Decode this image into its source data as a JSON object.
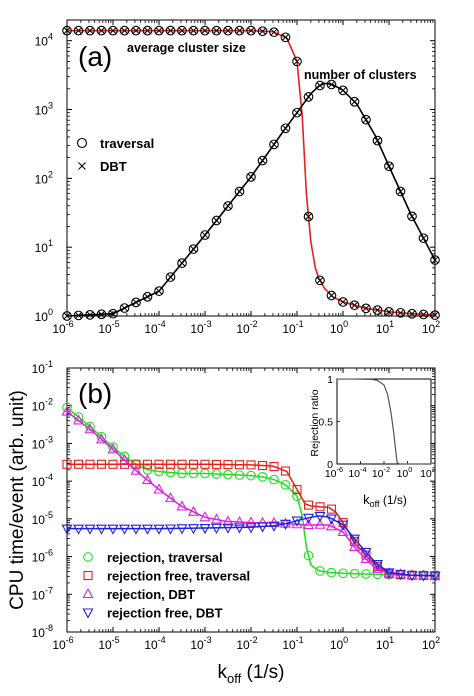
{
  "chart_data": [
    {
      "panel_label": "(a)",
      "type": "line",
      "xscale": "log",
      "yscale": "log",
      "xlim": [
        1e-06,
        100
      ],
      "ylim": [
        1,
        20000
      ],
      "x_ticks": [
        "10",
        "10",
        "10",
        "10",
        "10",
        "10",
        "10",
        "10",
        "10"
      ],
      "x_tick_exponents": [
        "-6",
        "-5",
        "-4",
        "-3",
        "-2",
        "-1",
        "0",
        "1",
        "2"
      ],
      "y_ticks": [
        "10",
        "10",
        "10",
        "10",
        "10"
      ],
      "y_tick_exponents": [
        "0",
        "1",
        "2",
        "3",
        "4"
      ],
      "annotations": [
        "average cluster size",
        "number of clusters"
      ],
      "legend": {
        "placement": "middle-left",
        "entries": [
          {
            "marker": "circle",
            "label": "traversal"
          },
          {
            "marker": "cross",
            "label": "DBT"
          }
        ]
      },
      "series": [
        {
          "annotation": "average cluster size",
          "color": "#e8201c",
          "x": [
            1e-06,
            1e-05,
            0.0001,
            0.001,
            0.01,
            0.03,
            0.06,
            0.1,
            0.13,
            0.16,
            0.2,
            0.25,
            0.3,
            0.4,
            0.6,
            1,
            3,
            10,
            30,
            100
          ],
          "y": [
            14000,
            14000,
            14000,
            14000,
            14000,
            13500,
            11000,
            5000,
            800,
            60,
            12,
            5,
            3.5,
            2.5,
            1.9,
            1.6,
            1.3,
            1.15,
            1.08,
            1.03
          ]
        },
        {
          "annotation": "number of clusters",
          "color": "#000000",
          "x": [
            1e-06,
            1e-05,
            0.0001,
            0.001,
            0.01,
            0.05,
            0.1,
            0.2,
            0.3,
            0.4,
            0.6,
            1,
            2,
            5,
            10,
            30,
            100
          ],
          "y": [
            1,
            1.08,
            2.3,
            15,
            105,
            480,
            900,
            1700,
            2200,
            2400,
            2300,
            1900,
            1200,
            420,
            150,
            30,
            6.5
          ]
        }
      ],
      "marker_x": [
        1e-06,
        1.78e-06,
        3.16e-06,
        5.62e-06,
        1e-05,
        1.78e-05,
        3.16e-05,
        5.62e-05,
        0.0001,
        0.000178,
        0.000316,
        0.000562,
        0.001,
        0.00178,
        0.00316,
        0.00562,
        0.01,
        0.0178,
        0.0316,
        0.0562,
        0.1,
        0.178,
        0.316,
        0.562,
        1,
        1.78,
        3.16,
        5.62,
        10,
        17.8,
        31.6,
        56.2,
        100
      ]
    },
    {
      "panel_label": "(b)",
      "type": "line",
      "xscale": "log",
      "yscale": "log",
      "xlabel_main": "k",
      "xlabel_sub": "off",
      "xlabel_unit": " (1/s)",
      "ylabel": "CPU time/event (arb. unit)",
      "xlim": [
        1e-06,
        100
      ],
      "ylim": [
        1e-08,
        0.1
      ],
      "x_ticks": [
        "10",
        "10",
        "10",
        "10",
        "10",
        "10",
        "10",
        "10",
        "10"
      ],
      "x_tick_exponents": [
        "-6",
        "-5",
        "-4",
        "-3",
        "-2",
        "-1",
        "0",
        "1",
        "2"
      ],
      "y_ticks": [
        "10",
        "10",
        "10",
        "10",
        "10",
        "10",
        "10",
        "10"
      ],
      "y_tick_exponents": [
        "-8",
        "-7",
        "-6",
        "-5",
        "-4",
        "-3",
        "-2",
        "-1"
      ],
      "legend": {
        "placement": "bottom-left",
        "entries": [
          {
            "marker": "circle",
            "color": "#1ee01e",
            "label": "rejection, traversal"
          },
          {
            "marker": "square",
            "color": "#e8201c",
            "label": "rejection free, traversal"
          },
          {
            "marker": "triangle-up",
            "color": "#e020e0",
            "label": "rejection, DBT"
          },
          {
            "marker": "triangle-down",
            "color": "#2020e0",
            "label": "rejection free, DBT"
          }
        ]
      },
      "series": [
        {
          "name": "rejection, traversal",
          "color": "#1ee01e",
          "marker": "circle",
          "x": [
            1e-06,
            1.78e-06,
            3.16e-06,
            5.62e-06,
            1e-05,
            1.78e-05,
            3.16e-05,
            5.62e-05,
            0.0001,
            0.000178,
            0.000316,
            0.000562,
            0.001,
            0.00178,
            0.00316,
            0.00562,
            0.01,
            0.0178,
            0.0316,
            0.0562,
            0.1,
            0.13,
            0.16,
            0.2,
            0.3,
            0.5,
            1,
            2,
            5,
            10,
            30,
            100
          ],
          "y": [
            0.009,
            0.005,
            0.0028,
            0.0015,
            0.0008,
            0.00045,
            0.00028,
            0.0002,
            0.00018,
            0.00017,
            0.00016,
            0.00016,
            0.00016,
            0.000155,
            0.00015,
            0.000145,
            0.00014,
            0.00013,
            0.00011,
            8e-05,
            4e-05,
            1.2e-05,
            1.8e-06,
            6e-07,
            4.2e-07,
            3.8e-07,
            3.6e-07,
            3.5e-07,
            3.4e-07,
            3.3e-07,
            3.2e-07,
            3.2e-07
          ]
        },
        {
          "name": "rejection free, traversal",
          "color": "#e8201c",
          "marker": "square",
          "x": [
            1e-06,
            1e-05,
            0.0001,
            0.001,
            0.01,
            0.03,
            0.06,
            0.1,
            0.15,
            0.2,
            0.3,
            0.5,
            0.7,
            1,
            2,
            5,
            10,
            30,
            100
          ],
          "y": [
            0.00028,
            0.00028,
            0.00028,
            0.00028,
            0.00027,
            0.00025,
            0.00018,
            6e-05,
            2.5e-05,
            2.2e-05,
            2.1e-05,
            2e-05,
            1.5e-05,
            8e-06,
            2e-06,
            6e-07,
            3.5e-07,
            3.2e-07,
            3.1e-07
          ]
        },
        {
          "name": "rejection, DBT",
          "color": "#e020e0",
          "marker": "triangle-up",
          "x": [
            1e-06,
            3e-06,
            1e-05,
            3e-05,
            0.0001,
            0.0003,
            0.001,
            0.003,
            0.01,
            0.03,
            0.1,
            0.2,
            0.3,
            0.5,
            1,
            2,
            5,
            10,
            30,
            100
          ],
          "y": [
            0.007,
            0.0025,
            0.0007,
            0.0002,
            6e-05,
            2.2e-05,
            1.1e-05,
            8.5e-06,
            8e-06,
            7.8e-06,
            7.2e-06,
            6.8e-06,
            7e-06,
            6.8e-06,
            4.5e-06,
            1.5e-06,
            5e-07,
            3.6e-07,
            3.2e-07,
            3.1e-07
          ]
        },
        {
          "name": "rejection free, DBT",
          "color": "#2020e0",
          "marker": "triangle-down",
          "x": [
            1e-06,
            1e-05,
            0.0001,
            0.001,
            0.01,
            0.03,
            0.06,
            0.1,
            0.2,
            0.3,
            0.5,
            1,
            2,
            5,
            10,
            30,
            100
          ],
          "y": [
            5.5e-06,
            5.5e-06,
            5.5e-06,
            5.7e-06,
            6e-06,
            6.5e-06,
            7.5e-06,
            9e-06,
            1.1e-05,
            1.2e-05,
            1.1e-05,
            7e-06,
            2.5e-06,
            7e-07,
            3.8e-07,
            3.2e-07,
            3.1e-07
          ]
        }
      ],
      "marker_x": [
        1e-06,
        1.78e-06,
        3.16e-06,
        5.62e-06,
        1e-05,
        1.78e-05,
        3.16e-05,
        5.62e-05,
        0.0001,
        0.000178,
        0.000316,
        0.000562,
        0.001,
        0.00178,
        0.00316,
        0.00562,
        0.01,
        0.0178,
        0.0316,
        0.0562,
        0.1,
        0.178,
        0.316,
        0.562,
        1,
        1.78,
        3.16,
        5.62,
        10,
        17.8,
        31.6,
        56.2,
        100
      ],
      "inset": {
        "type": "line",
        "ylabel": "Rejection ratio",
        "xlabel_main": "k",
        "xlabel_sub": "off",
        "xlabel_unit": " (1/s)",
        "xscale": "log",
        "xlim": [
          1e-06,
          100
        ],
        "ylim": [
          0,
          1
        ],
        "x_ticks": [
          "10",
          "10",
          "10",
          "10",
          "10"
        ],
        "x_tick_exponents": [
          "-6",
          "-4",
          "-2",
          "0",
          "2"
        ],
        "y_ticks": [
          "0",
          "0.5",
          "1"
        ],
        "color": "#555555",
        "x": [
          1e-06,
          1e-05,
          0.0001,
          0.001,
          0.003,
          0.01,
          0.02,
          0.04,
          0.07,
          0.1,
          0.13,
          0.2,
          100
        ],
        "y": [
          0.999,
          0.999,
          0.998,
          0.995,
          0.98,
          0.93,
          0.82,
          0.6,
          0.35,
          0.15,
          0.02,
          0,
          0
        ]
      }
    }
  ]
}
